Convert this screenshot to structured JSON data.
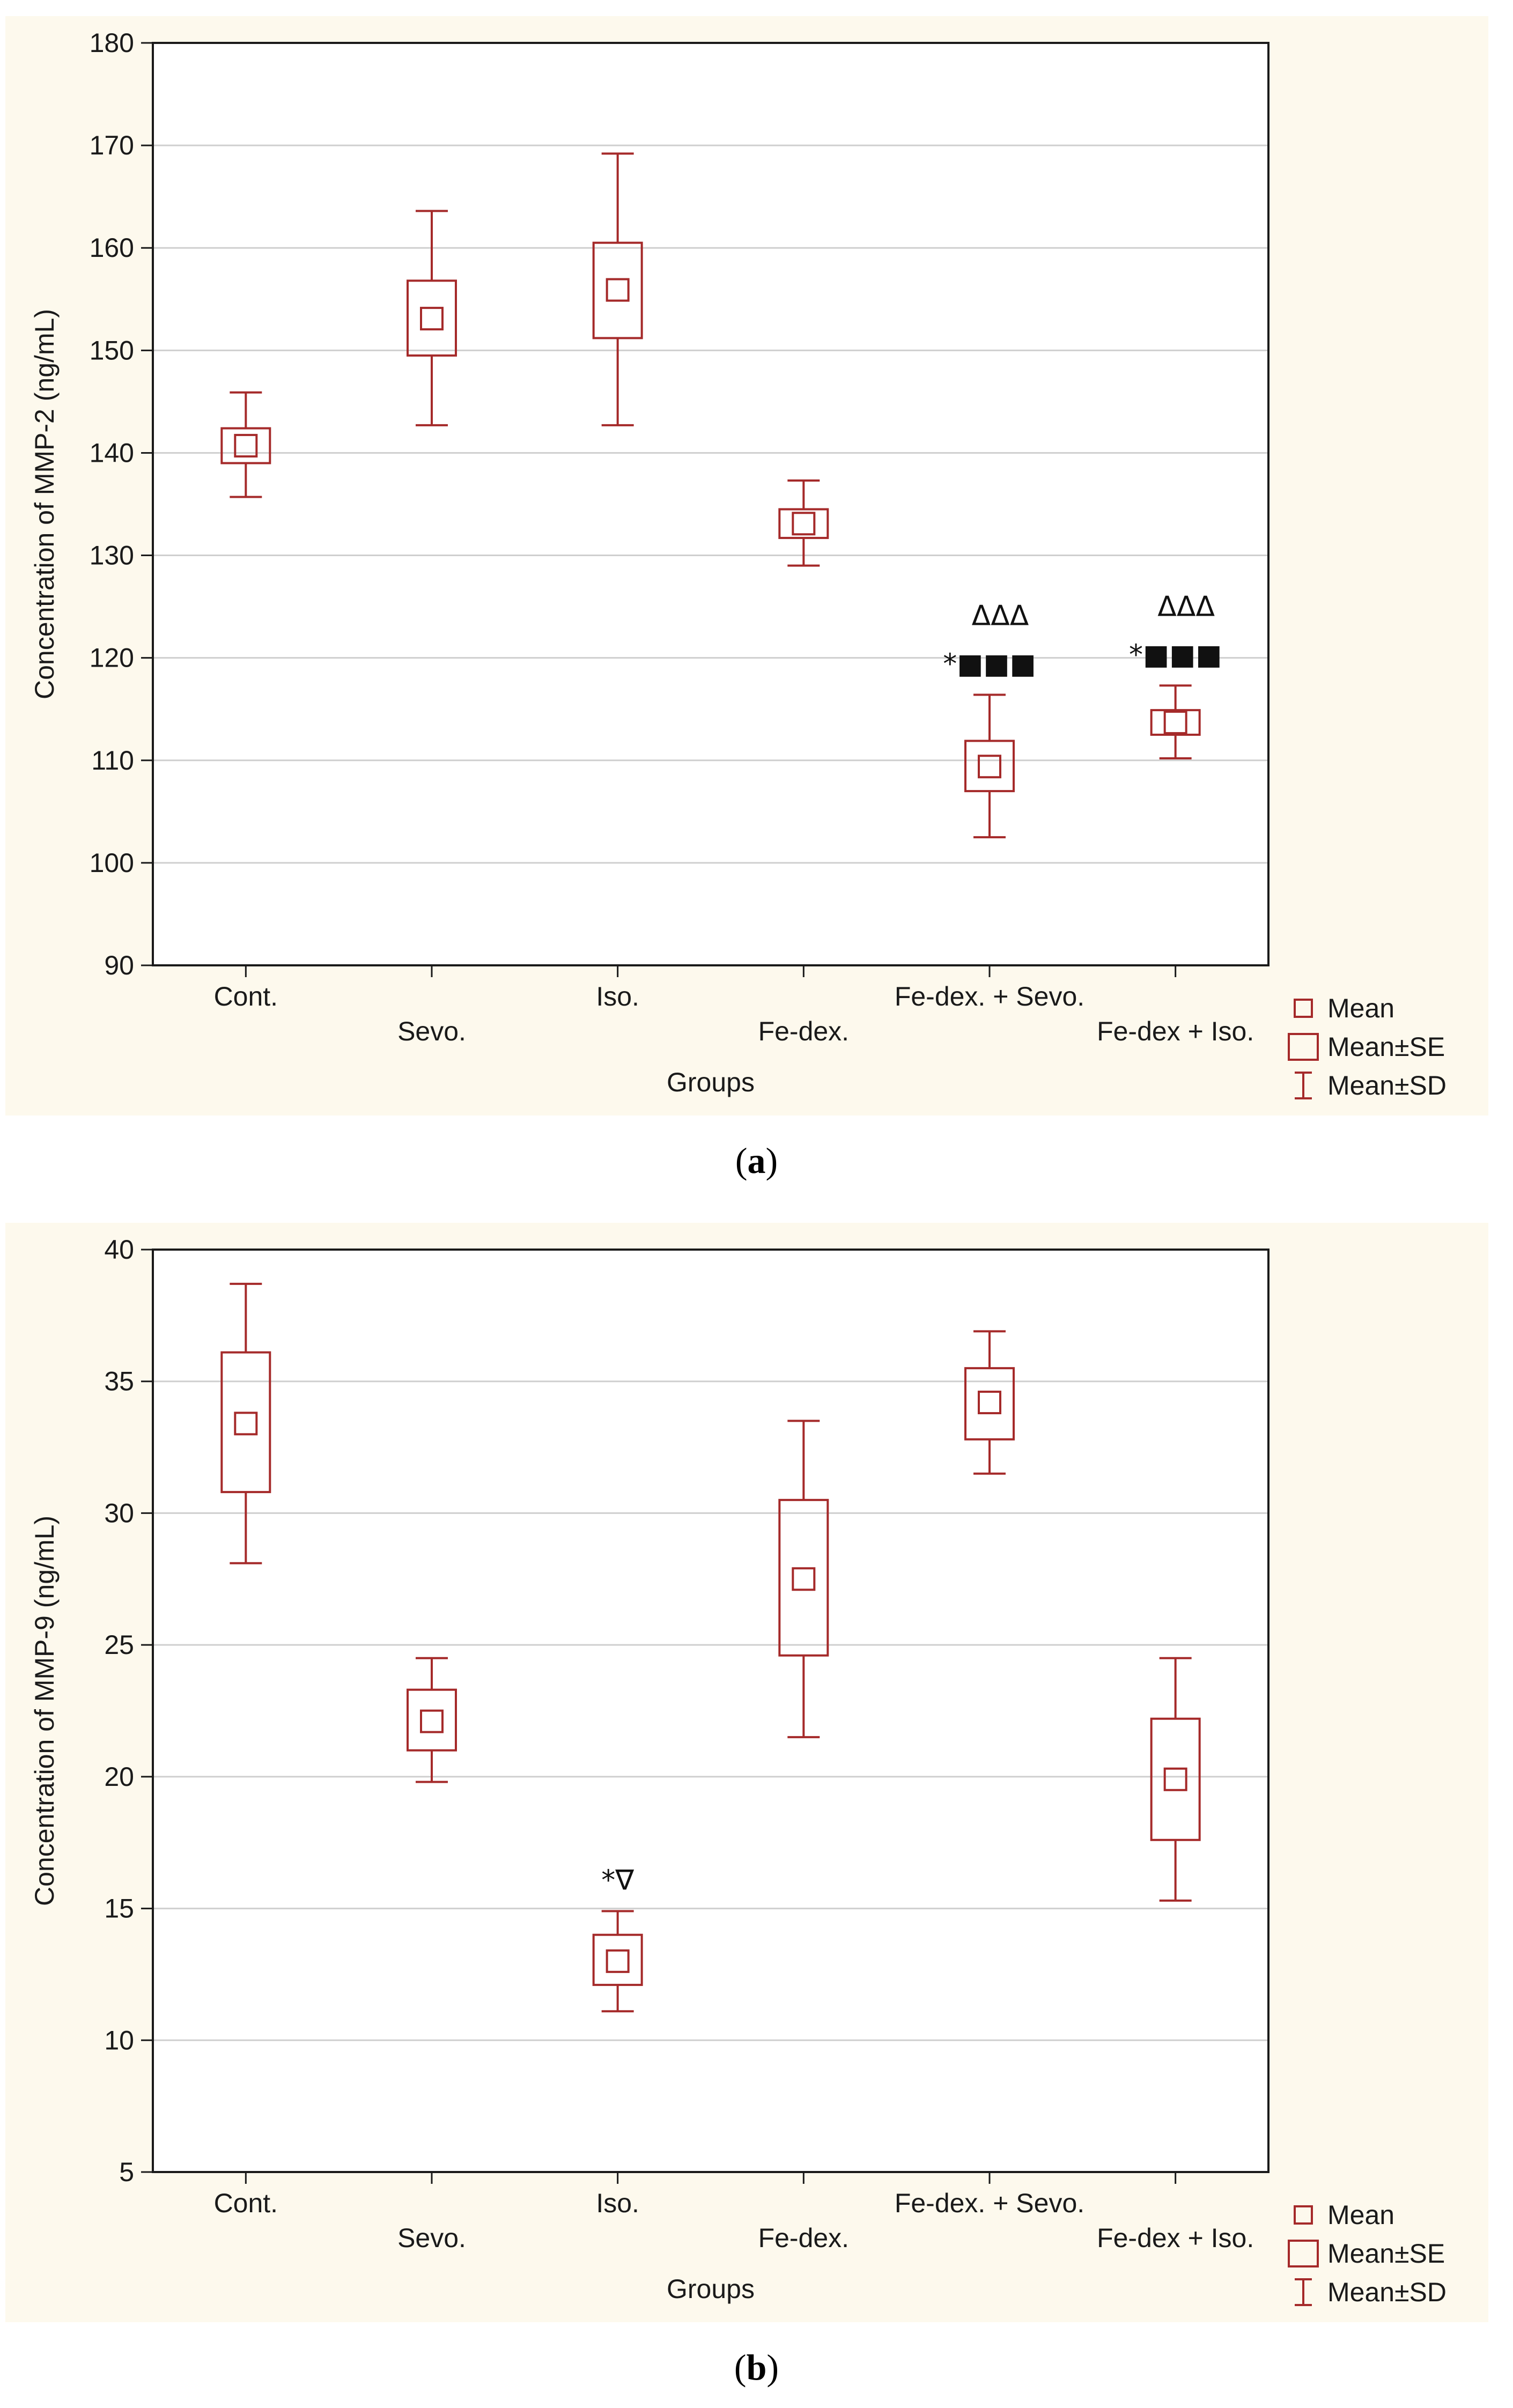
{
  "chart_data": [
    {
      "type": "box",
      "panel_label": "a",
      "ylabel": "Concentration of MMP-2 (ng/mL)",
      "xlabel": "Groups",
      "ylim": [
        90,
        180
      ],
      "yticks": [
        90,
        100,
        110,
        120,
        130,
        140,
        150,
        160,
        170,
        180
      ],
      "grid": true,
      "categories": [
        "Cont.",
        "Sevo.",
        "Iso.",
        "Fe-dex.",
        "Fe-dex. + Sevo.",
        "Fe-dex + Iso."
      ],
      "series": [
        {
          "name": "Mean",
          "values": [
            140.7,
            153.1,
            155.9,
            133.1,
            109.4,
            113.7
          ]
        },
        {
          "name": "Mean±SE",
          "low": [
            139.0,
            149.5,
            151.2,
            131.7,
            107.0,
            112.5
          ],
          "high": [
            142.4,
            156.8,
            160.5,
            134.5,
            111.9,
            114.9
          ]
        },
        {
          "name": "Mean±SD",
          "low": [
            135.7,
            142.7,
            142.7,
            129.0,
            102.5,
            110.2
          ],
          "high": [
            145.9,
            163.6,
            169.2,
            137.3,
            116.4,
            117.3
          ]
        }
      ],
      "annotations": [
        {
          "category": "Fe-dex. + Sevo.",
          "line1": "ΔΔΔ",
          "line2": "*■■■"
        },
        {
          "category": "Fe-dex + Iso.",
          "line1": "ΔΔΔ",
          "line2": "*■■■"
        }
      ],
      "legend": {
        "position": "bottom-right",
        "entries": [
          "Mean",
          "Mean±SE",
          "Mean±SD"
        ]
      }
    },
    {
      "type": "box",
      "panel_label": "b",
      "ylabel": "Concentration of MMP-9 (ng/mL)",
      "xlabel": "Groups",
      "ylim": [
        5,
        40
      ],
      "yticks": [
        5,
        10,
        15,
        20,
        25,
        30,
        35,
        40
      ],
      "grid": true,
      "categories": [
        "Cont.",
        "Sevo.",
        "Iso.",
        "Fe-dex.",
        "Fe-dex. + Sevo.",
        "Fe-dex + Iso."
      ],
      "series": [
        {
          "name": "Mean",
          "values": [
            33.4,
            22.1,
            13.0,
            27.5,
            34.2,
            19.9
          ]
        },
        {
          "name": "Mean±SE",
          "low": [
            30.8,
            21.0,
            12.1,
            24.6,
            32.8,
            17.6
          ],
          "high": [
            36.1,
            23.3,
            14.0,
            30.5,
            35.5,
            22.2
          ]
        },
        {
          "name": "Mean±SD",
          "low": [
            28.1,
            19.8,
            11.1,
            21.5,
            31.5,
            15.3
          ],
          "high": [
            38.7,
            24.5,
            14.9,
            33.5,
            36.9,
            24.5
          ]
        }
      ],
      "annotations": [
        {
          "category": "Iso.",
          "line1": "",
          "line2": "*∇"
        }
      ],
      "legend": {
        "position": "bottom-right",
        "entries": [
          "Mean",
          "Mean±SE",
          "Mean±SD"
        ]
      }
    }
  ],
  "colors": {
    "plot_bg": "#fdf9ed",
    "series": "#a52a2a",
    "grid": "#cfcfcf",
    "frame": "#1a1a1a"
  },
  "captions": {
    "a": "a",
    "b": "b"
  }
}
